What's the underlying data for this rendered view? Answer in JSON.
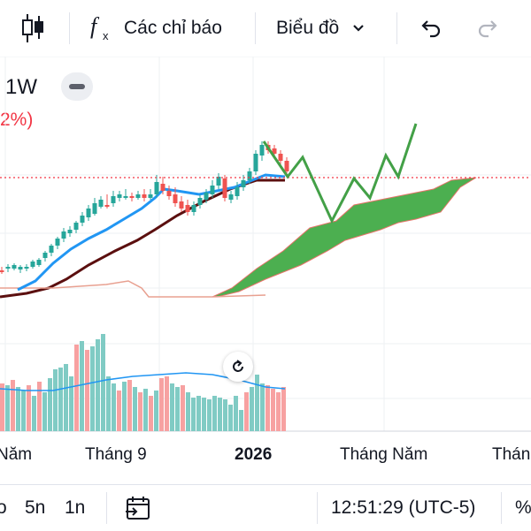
{
  "toolbar": {
    "indicators_label": "Các chỉ báo",
    "chart_type_label": "Biểu đồ",
    "icons": [
      "candles-icon",
      "function-icon",
      "chevron-down-icon",
      "undo-icon",
      "redo-icon"
    ]
  },
  "legend": {
    "interval": "1W",
    "change_fragment": "2%)",
    "change_color": "#f23645"
  },
  "colors": {
    "up": "#26a69a",
    "down": "#ef5350",
    "base_line": "#5b0f0f",
    "conversion_line": "#2196f3",
    "cloud": "#4caf50",
    "forecast": "#43a047",
    "volume_ma": "#2196f3",
    "price_line": "#f23645"
  },
  "x_axis_labels": [
    "Năm",
    "Tháng 9",
    "2026",
    "Tháng Năm",
    "Thán"
  ],
  "bottom_bar": {
    "left_cut": "o",
    "range_5d": "5n",
    "range_1d": "1n",
    "time": "12:51:29 (UTC-5)",
    "percent_cut": "%"
  }
}
